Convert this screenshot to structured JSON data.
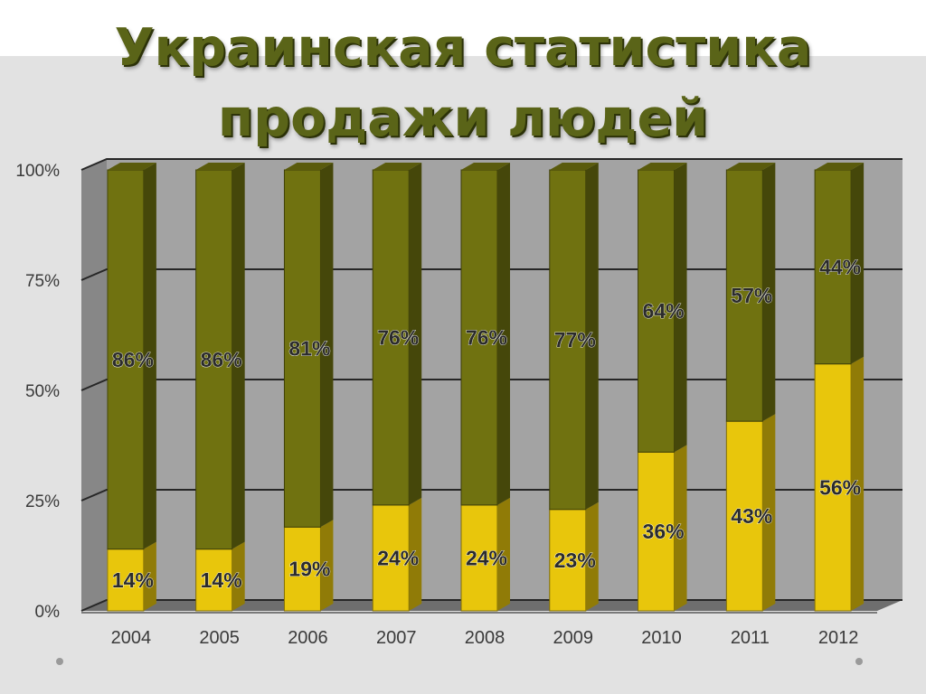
{
  "title_lines": [
    "Украинская статистика",
    "продажи людей"
  ],
  "colors": {
    "upper": "#707210",
    "lower": "#e8c60c",
    "label": "#2b2b2b"
  },
  "chart_data": {
    "type": "bar",
    "stacked": true,
    "categories": [
      "2004",
      "2005",
      "2006",
      "2007",
      "2008",
      "2009",
      "2010",
      "2011",
      "2012"
    ],
    "series": [
      {
        "values": [
          14,
          14,
          19,
          24,
          24,
          23,
          36,
          43,
          56
        ],
        "labels": [
          "14%",
          "14%",
          "19%",
          "24%",
          "24%",
          "23%",
          "36%",
          "43%",
          "56%"
        ],
        "color": "#e8c60c"
      },
      {
        "values": [
          86,
          86,
          81,
          76,
          76,
          77,
          64,
          57,
          44
        ],
        "labels": [
          "86%",
          "86%",
          "81%",
          "76%",
          "76%",
          "77%",
          "64%",
          "57%",
          "44%"
        ],
        "color": "#707210"
      }
    ],
    "yticks": [
      "0%",
      "25%",
      "50%",
      "75%",
      "100%"
    ],
    "ylim": [
      0,
      100
    ],
    "grid": true,
    "three_d": true
  }
}
